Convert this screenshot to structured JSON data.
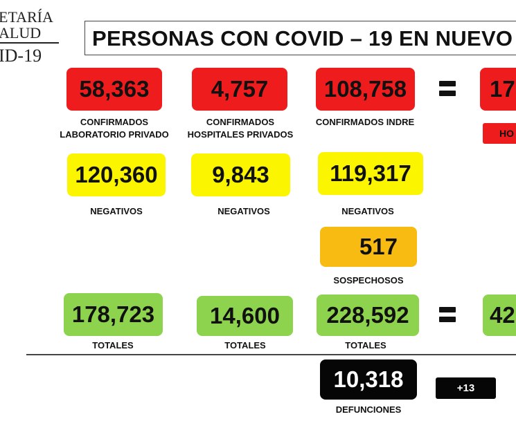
{
  "header": {
    "logo_line1": "ETARÍA",
    "logo_line2": "ALUD",
    "logo_line3": "ID-19",
    "title": "PERSONAS CON COVID – 19 EN NUEVO"
  },
  "row_confirmados": {
    "privado": {
      "value": "58,363",
      "label_1": "CONFIRMADOS",
      "label_2": "LABORATORIO PRIVADO"
    },
    "hospitales": {
      "value": "4,757",
      "label_1": "CONFIRMADOS",
      "label_2": "HOSPITALES PRIVADOS"
    },
    "indre": {
      "value": "108,758",
      "label_1": "CONFIRMADOS INDRE"
    },
    "total_partial": {
      "value": "17",
      "label": "HO"
    }
  },
  "row_negativos": {
    "privado": {
      "value": "120,360",
      "label": "NEGATIVOS"
    },
    "hospitales": {
      "value": "9,843",
      "label": "NEGATIVOS"
    },
    "indre": {
      "value": "119,317",
      "label": "NEGATIVOS"
    }
  },
  "sospechosos": {
    "value": "517",
    "label": "SOSPECHOSOS"
  },
  "row_totales": {
    "privado": {
      "value": "178,723",
      "label": "TOTALES"
    },
    "hospitales": {
      "value": "14,600",
      "label": "TOTALES"
    },
    "indre": {
      "value": "228,592",
      "label": "TOTALES"
    },
    "total_partial": {
      "value": "42"
    }
  },
  "defunciones": {
    "value": "10,318",
    "label": "DEFUNCIONES",
    "delta": "+13"
  },
  "colors": {
    "confirmados": "#ee1c1c",
    "negativos": "#fbf600",
    "sospechosos": "#f8bb12",
    "totales": "#8ed34d",
    "defunciones": "#060606"
  }
}
